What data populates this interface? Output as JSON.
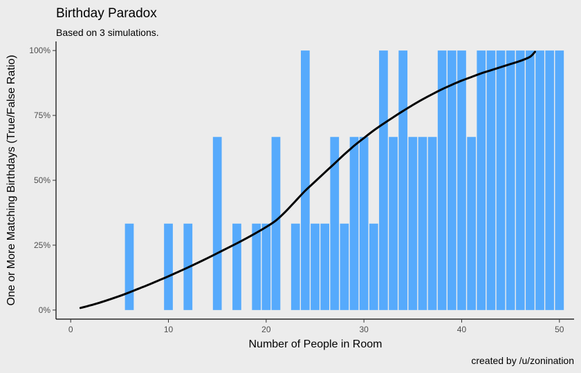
{
  "chart_data": {
    "type": "bar",
    "title": "Birthday Paradox",
    "subtitle": "Based on 3 simulations.",
    "xlabel": "Number of People in Room",
    "ylabel": "One or More Matching Birthdays (True/False Ratio)",
    "caption": "created by /u/zonination",
    "xlim": [
      -1.5,
      51.5
    ],
    "ylim": [
      -0.035,
      1.035
    ],
    "x_ticks": [
      0,
      10,
      20,
      30,
      40,
      50
    ],
    "x_tick_labels": [
      "0",
      "10",
      "20",
      "30",
      "40",
      "50"
    ],
    "y_ticks": [
      0,
      0.25,
      0.5,
      0.75,
      1.0
    ],
    "y_tick_labels": [
      "0%",
      "25%",
      "50%",
      "75%",
      "100%"
    ],
    "grid": false,
    "bar_color": "#56aafc",
    "line_color": "#000000",
    "series": [
      {
        "type": "bar",
        "x": [
          1,
          2,
          3,
          4,
          5,
          6,
          7,
          8,
          9,
          10,
          11,
          12,
          13,
          14,
          15,
          16,
          17,
          18,
          19,
          20,
          21,
          22,
          23,
          24,
          25,
          26,
          27,
          28,
          29,
          30,
          31,
          32,
          33,
          34,
          35,
          36,
          37,
          38,
          39,
          40,
          41,
          42,
          43,
          44,
          45,
          46,
          47,
          48,
          49,
          50
        ],
        "values": [
          0,
          0,
          0,
          0,
          0,
          0.333,
          0,
          0,
          0,
          0.333,
          0,
          0.333,
          0,
          0,
          0.667,
          0,
          0.333,
          0,
          0.333,
          0.333,
          0.667,
          0,
          0.333,
          1,
          0.333,
          0.333,
          0.667,
          0.333,
          0.667,
          0.667,
          0.333,
          1,
          0.667,
          1,
          0.667,
          0.667,
          0.667,
          1,
          1,
          1,
          0.667,
          1,
          1,
          1,
          1,
          1,
          1,
          1,
          1,
          1
        ]
      },
      {
        "type": "line",
        "x": [
          1,
          2,
          3,
          4,
          5,
          6,
          7,
          8,
          9,
          10,
          11,
          12,
          13,
          14,
          15,
          16,
          17,
          18,
          19,
          20,
          21,
          22,
          23,
          24,
          25,
          26,
          27,
          28,
          29,
          30,
          31,
          32,
          33,
          34,
          35,
          36,
          37,
          38,
          39,
          40,
          41,
          42,
          43,
          44,
          45,
          46,
          47,
          47.5
        ],
        "values": [
          0.008,
          0.018,
          0.029,
          0.041,
          0.054,
          0.068,
          0.083,
          0.098,
          0.114,
          0.13,
          0.147,
          0.164,
          0.182,
          0.2,
          0.219,
          0.238,
          0.257,
          0.277,
          0.298,
          0.32,
          0.345,
          0.38,
          0.42,
          0.46,
          0.495,
          0.53,
          0.565,
          0.6,
          0.633,
          0.663,
          0.692,
          0.718,
          0.743,
          0.767,
          0.79,
          0.812,
          0.832,
          0.851,
          0.868,
          0.884,
          0.898,
          0.912,
          0.924,
          0.936,
          0.948,
          0.96,
          0.976,
          0.995
        ]
      }
    ]
  }
}
